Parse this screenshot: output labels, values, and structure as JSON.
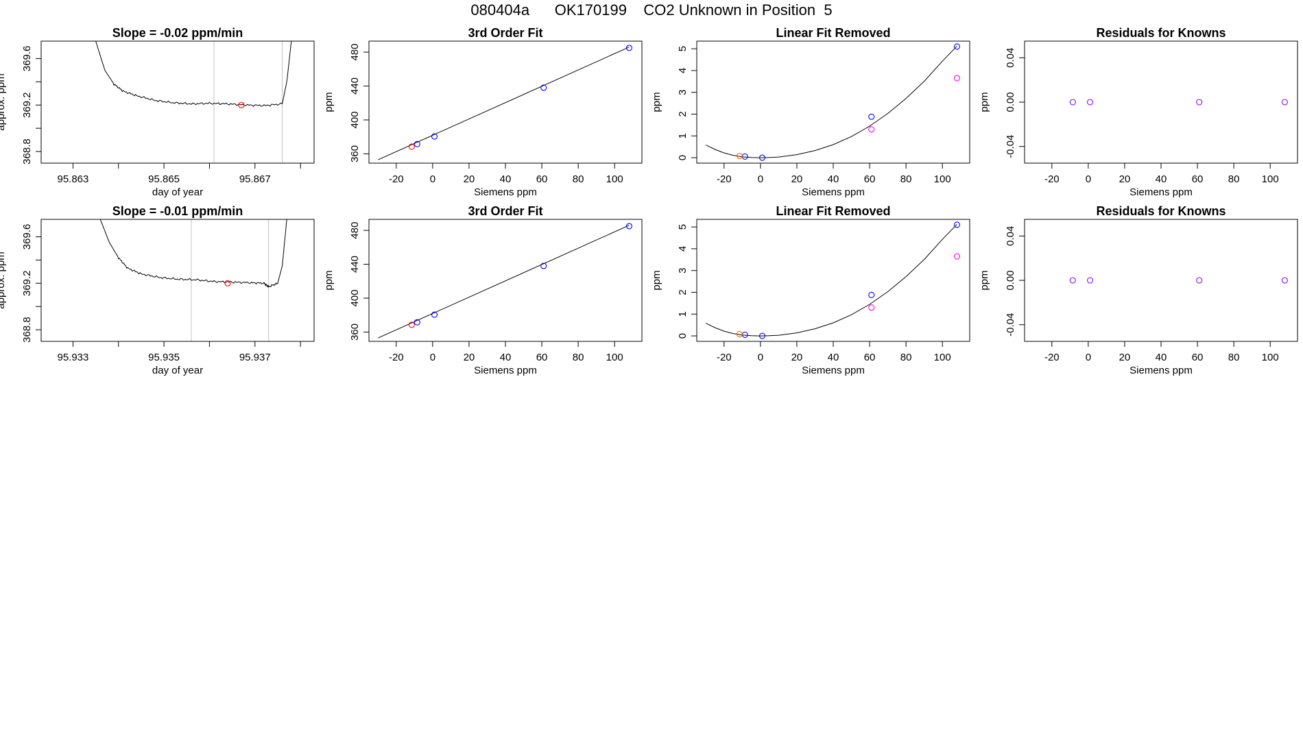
{
  "header": {
    "run_id": "080404a",
    "tank_id": "OK170199",
    "description": "CO2 Unknown in Position",
    "position": "5"
  },
  "colors": {
    "trace": "#000000",
    "sample_marker": "#ff0000",
    "known_marker": "#0000ff",
    "unknown_marker": "#ff6600",
    "residual_marker": "#ff00ff",
    "residual_known_marker": "#8000ff",
    "window_line": "#c0c0c0",
    "frame": "#000000"
  },
  "chart_data": [
    {
      "type": "line",
      "title": "Slope =  -0.02  ppm/min",
      "xlabel": "day of year",
      "ylabel": "approx. ppm",
      "xlim": [
        95.8623,
        95.8683
      ],
      "ylim": [
        368.7,
        369.75
      ],
      "x_ticks": [
        "95.863",
        "95.865",
        "95.867"
      ],
      "x_tick_values": [
        95.863,
        95.865,
        95.867
      ],
      "x_minor_ticks": [
        95.864,
        95.866,
        95.868
      ],
      "y_ticks": [
        "368.8",
        "369.2",
        "369.6"
      ],
      "y_tick_values": [
        368.8,
        369.2,
        369.6
      ],
      "y_minor_ticks": [
        369.0,
        369.4
      ],
      "window": [
        95.8661,
        95.8676
      ],
      "trace": {
        "x": [
          95.8635,
          95.8637,
          95.8639,
          95.8641,
          95.8644,
          95.8648,
          95.8652,
          95.8656,
          95.866,
          95.8664,
          95.8668,
          95.8672,
          95.8676,
          95.8677,
          95.8678
        ],
        "y": [
          369.75,
          369.5,
          369.38,
          369.32,
          369.28,
          369.24,
          369.22,
          369.21,
          369.215,
          369.21,
          369.2,
          369.195,
          369.21,
          369.4,
          369.75
        ]
      },
      "marker": {
        "x": 95.8667,
        "y": 369.2
      }
    },
    {
      "type": "scatter",
      "title": "3rd Order Fit",
      "xlabel": "Siemens ppm",
      "ylabel": "ppm",
      "xlim": [
        -35,
        115
      ],
      "ylim": [
        349,
        493
      ],
      "x_ticks": [
        "-20",
        "0",
        "20",
        "40",
        "60",
        "80",
        "100"
      ],
      "x_tick_values": [
        -20,
        0,
        20,
        40,
        60,
        80,
        100
      ],
      "y_ticks": [
        "360",
        "400",
        "440",
        "480"
      ],
      "y_tick_values": [
        360,
        400,
        440,
        480
      ],
      "fit_line": {
        "x": [
          -30,
          108
        ],
        "y": [
          353,
          486
        ]
      },
      "known_points": {
        "x": [
          -8.5,
          1,
          61,
          108
        ],
        "y": [
          371.5,
          380.5,
          438,
          485
        ]
      },
      "unknown_points": {
        "x": [
          -11.5
        ],
        "y": [
          368.5
        ]
      }
    },
    {
      "type": "scatter",
      "title": "Linear Fit Removed",
      "xlabel": "Siemens ppm",
      "ylabel": "ppm",
      "xlim": [
        -35,
        115
      ],
      "ylim": [
        -0.25,
        5.35
      ],
      "x_ticks": [
        "-20",
        "0",
        "20",
        "40",
        "60",
        "80",
        "100"
      ],
      "x_tick_values": [
        -20,
        0,
        20,
        40,
        60,
        80,
        100
      ],
      "y_ticks": [
        "0",
        "1",
        "2",
        "3",
        "4",
        "5"
      ],
      "y_tick_values": [
        0,
        1,
        2,
        3,
        4,
        5
      ],
      "fit_curve": {
        "x": [
          -30,
          -25,
          -20,
          -15,
          -10,
          -5,
          0,
          5,
          10,
          20,
          30,
          40,
          50,
          60,
          70,
          80,
          90,
          100,
          108
        ],
        "y": [
          0.58,
          0.38,
          0.22,
          0.11,
          0.04,
          0.01,
          0.0,
          0.01,
          0.03,
          0.14,
          0.33,
          0.6,
          0.97,
          1.45,
          2.03,
          2.72,
          3.51,
          4.43,
          5.12
        ]
      },
      "known_points": {
        "x": [
          -8.5,
          1,
          61,
          108
        ],
        "y": [
          0.05,
          0.0,
          1.88,
          5.1
        ]
      },
      "unknown_points": {
        "x": [
          -11.5
        ],
        "y": [
          0.08
        ]
      },
      "residual_points": {
        "x": [
          61,
          108
        ],
        "y": [
          1.3,
          3.65
        ]
      }
    },
    {
      "type": "scatter",
      "title": "Residuals for Knowns",
      "xlabel": "Siemens ppm",
      "ylabel": "ppm",
      "xlim": [
        -35,
        115
      ],
      "ylim": [
        -0.055,
        0.055
      ],
      "x_ticks": [
        "-20",
        "0",
        "20",
        "40",
        "60",
        "80",
        "100"
      ],
      "x_tick_values": [
        -20,
        0,
        20,
        40,
        60,
        80,
        100
      ],
      "y_ticks": [
        "-0.04",
        "0.00",
        "0.04"
      ],
      "y_tick_values": [
        -0.04,
        0.0,
        0.04
      ],
      "points": {
        "x": [
          -8.5,
          1,
          61,
          108
        ],
        "y": [
          0.0,
          0.0,
          0.0,
          0.0
        ]
      }
    },
    {
      "type": "line",
      "title": "Slope =  -0.01  ppm/min",
      "xlabel": "day of year",
      "ylabel": "approx. ppm",
      "xlim": [
        95.9323,
        95.9383
      ],
      "ylim": [
        368.7,
        369.75
      ],
      "x_ticks": [
        "95.933",
        "95.935",
        "95.937"
      ],
      "x_tick_values": [
        95.933,
        95.935,
        95.937
      ],
      "x_minor_ticks": [
        95.934,
        95.936,
        95.938
      ],
      "y_ticks": [
        "368.8",
        "369.2",
        "369.6"
      ],
      "y_tick_values": [
        368.8,
        369.2,
        369.6
      ],
      "y_minor_ticks": [
        369.0,
        369.4
      ],
      "window": [
        95.9356,
        95.9373
      ],
      "trace": {
        "x": [
          95.9336,
          95.9338,
          95.934,
          95.9342,
          95.9345,
          95.9349,
          95.9353,
          95.9357,
          95.9361,
          95.9365,
          95.9369,
          95.9372,
          95.9373,
          95.9375,
          95.9376,
          95.9377
        ],
        "y": [
          369.75,
          369.55,
          369.42,
          369.33,
          369.28,
          369.25,
          369.235,
          369.23,
          369.215,
          369.21,
          369.205,
          369.2,
          369.17,
          369.2,
          369.35,
          369.75
        ]
      },
      "marker": {
        "x": 95.9364,
        "y": 369.2
      }
    },
    {
      "type": "scatter",
      "title": "3rd Order Fit",
      "xlabel": "Siemens ppm",
      "ylabel": "ppm",
      "xlim": [
        -35,
        115
      ],
      "ylim": [
        349,
        493
      ],
      "x_ticks": [
        "-20",
        "0",
        "20",
        "40",
        "60",
        "80",
        "100"
      ],
      "x_tick_values": [
        -20,
        0,
        20,
        40,
        60,
        80,
        100
      ],
      "y_ticks": [
        "360",
        "400",
        "440",
        "480"
      ],
      "y_tick_values": [
        360,
        400,
        440,
        480
      ],
      "fit_line": {
        "x": [
          -30,
          108
        ],
        "y": [
          353,
          486
        ]
      },
      "known_points": {
        "x": [
          -8.5,
          1,
          61,
          108
        ],
        "y": [
          371.5,
          380.5,
          438,
          485
        ]
      },
      "unknown_points": {
        "x": [
          -11.5
        ],
        "y": [
          368.5
        ]
      }
    },
    {
      "type": "scatter",
      "title": "Linear Fit Removed",
      "xlabel": "Siemens ppm",
      "ylabel": "ppm",
      "xlim": [
        -35,
        115
      ],
      "ylim": [
        -0.25,
        5.35
      ],
      "x_ticks": [
        "-20",
        "0",
        "20",
        "40",
        "60",
        "80",
        "100"
      ],
      "x_tick_values": [
        -20,
        0,
        20,
        40,
        60,
        80,
        100
      ],
      "y_ticks": [
        "0",
        "1",
        "2",
        "3",
        "4",
        "5"
      ],
      "y_tick_values": [
        0,
        1,
        2,
        3,
        4,
        5
      ],
      "fit_curve": {
        "x": [
          -30,
          -25,
          -20,
          -15,
          -10,
          -5,
          0,
          5,
          10,
          20,
          30,
          40,
          50,
          60,
          70,
          80,
          90,
          100,
          108
        ],
        "y": [
          0.58,
          0.38,
          0.22,
          0.11,
          0.04,
          0.01,
          0.0,
          0.01,
          0.03,
          0.14,
          0.33,
          0.6,
          0.97,
          1.45,
          2.03,
          2.72,
          3.51,
          4.43,
          5.12
        ]
      },
      "known_points": {
        "x": [
          -8.5,
          1,
          61,
          108
        ],
        "y": [
          0.05,
          0.0,
          1.88,
          5.1
        ]
      },
      "unknown_points": {
        "x": [
          -11.5
        ],
        "y": [
          0.08
        ]
      },
      "residual_points": {
        "x": [
          61,
          108
        ],
        "y": [
          1.3,
          3.65
        ]
      }
    },
    {
      "type": "scatter",
      "title": "Residuals for Knowns",
      "xlabel": "Siemens ppm",
      "ylabel": "ppm",
      "xlim": [
        -35,
        115
      ],
      "ylim": [
        -0.055,
        0.055
      ],
      "x_ticks": [
        "-20",
        "0",
        "20",
        "40",
        "60",
        "80",
        "100"
      ],
      "x_tick_values": [
        -20,
        0,
        20,
        40,
        60,
        80,
        100
      ],
      "y_ticks": [
        "-0.04",
        "0.00",
        "0.04"
      ],
      "y_tick_values": [
        -0.04,
        0.0,
        0.04
      ],
      "points": {
        "x": [
          -8.5,
          1,
          61,
          108
        ],
        "y": [
          0.0,
          0.0,
          0.0,
          0.0
        ]
      }
    }
  ]
}
